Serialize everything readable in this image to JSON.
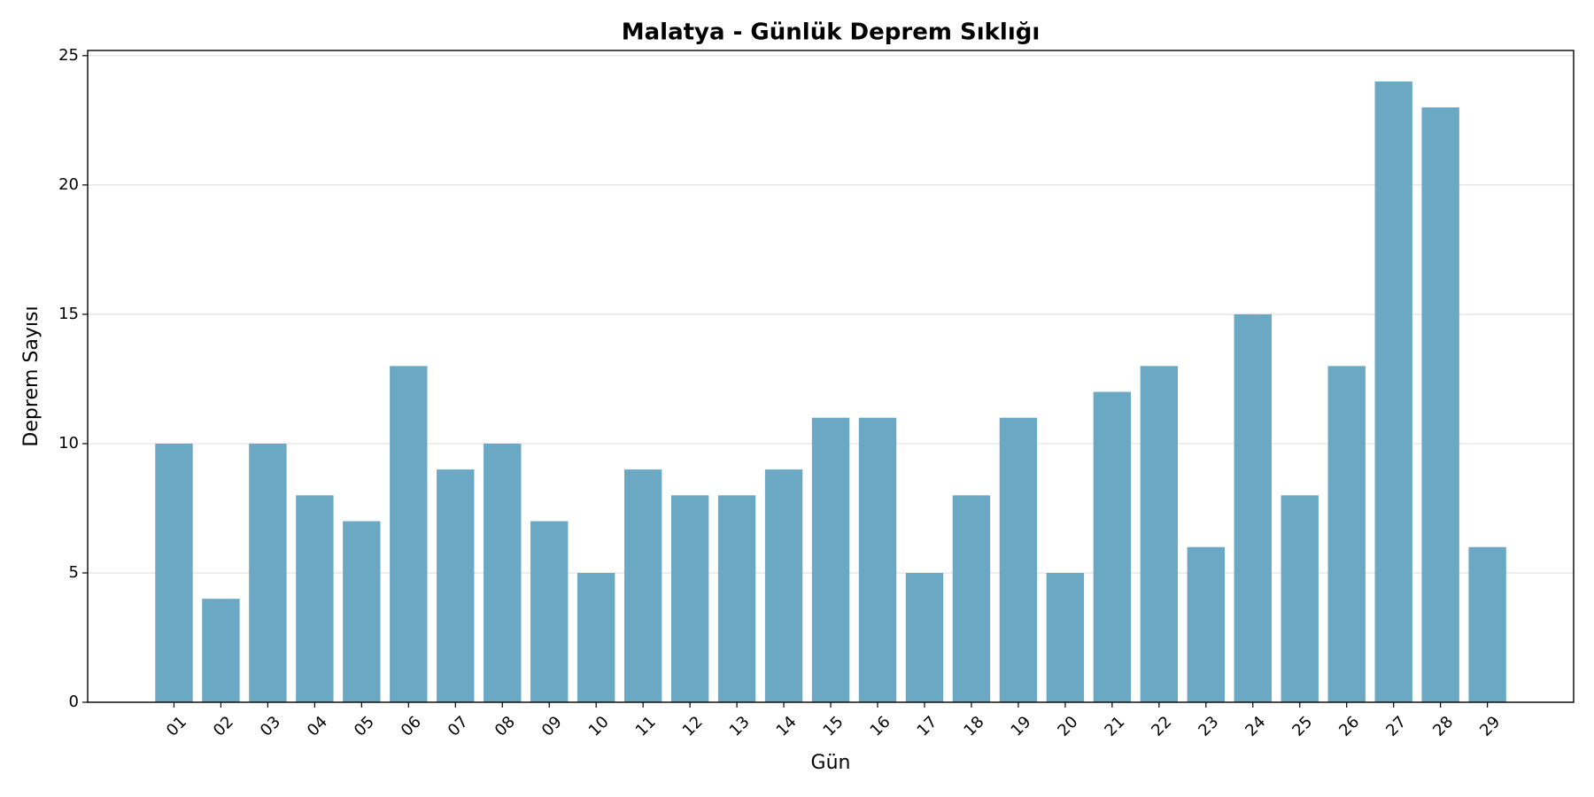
{
  "chart_data": {
    "type": "bar",
    "title": "Malatya - Günlük Deprem Sıklığı",
    "x_label": "Gün",
    "y_label": "Deprem Sayısı",
    "categories": [
      "01",
      "02",
      "03",
      "04",
      "05",
      "06",
      "07",
      "08",
      "09",
      "10",
      "11",
      "12",
      "13",
      "14",
      "15",
      "16",
      "17",
      "18",
      "19",
      "20",
      "21",
      "22",
      "23",
      "24",
      "25",
      "26",
      "27",
      "28",
      "29"
    ],
    "values": [
      10,
      4,
      10,
      8,
      7,
      13,
      9,
      10,
      7,
      5,
      9,
      8,
      8,
      9,
      11,
      11,
      5,
      8,
      11,
      5,
      12,
      13,
      6,
      15,
      8,
      13,
      24,
      23,
      6
    ],
    "color": "#6aa8c4",
    "ylim": [
      0,
      25.2
    ],
    "yticks": [
      0,
      5,
      10,
      15,
      20,
      25
    ],
    "grid": true
  }
}
